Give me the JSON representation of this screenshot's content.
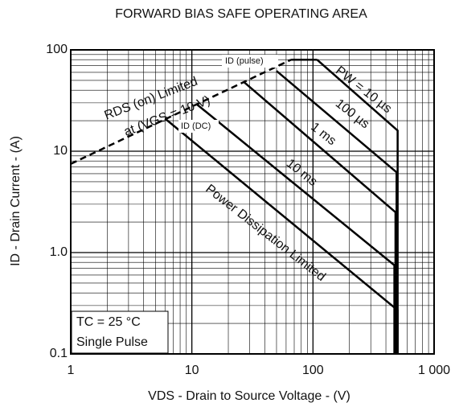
{
  "chart_data": {
    "type": "line",
    "title": "FORWARD BIAS SAFE OPERATING AREA",
    "x_label": "VDS - Drain to Source Voltage - (V)",
    "y_label": "ID - Drain Current - (A)",
    "log_x": true,
    "log_y": true,
    "grid": true,
    "xlim": [
      1,
      1000
    ],
    "ylim": [
      0.1,
      100
    ],
    "xticks": [
      1,
      10,
      100,
      {
        "value": 1000,
        "label": "1 000"
      }
    ],
    "yticks": [
      0.1,
      {
        "value": 1,
        "label": "1.0"
      },
      10,
      100
    ],
    "series": [
      {
        "name": "PW = 10 µs",
        "color": "#000000",
        "x": [
          108,
          500,
          500
        ],
        "values": [
          80,
          16,
          0.1
        ]
      },
      {
        "name": "100 µs",
        "color": "#000000",
        "x": [
          50,
          490,
          490
        ],
        "values": [
          62,
          6.2,
          0.1
        ]
      },
      {
        "name": "1 ms",
        "color": "#000000",
        "x": [
          27,
          480,
          480
        ],
        "values": [
          48,
          2.5,
          0.1
        ]
      },
      {
        "name": "10 ms",
        "color": "#000000",
        "x": [
          11,
          470,
          470
        ],
        "values": [
          29,
          0.75,
          0.1
        ]
      },
      {
        "name": "Power Dissipation Limited",
        "color": "#000000",
        "x": [
          6,
          500,
          500
        ],
        "values": [
          21,
          0.27,
          0.1
        ]
      },
      {
        "name": "RDS (on) Limited",
        "color": "#000000",
        "dashed": true,
        "x": [
          1,
          66
        ],
        "values": [
          7.5,
          80
        ]
      },
      {
        "name": "ID (pulse)",
        "color": "#000000",
        "x": [
          66,
          108
        ],
        "values": [
          80,
          80
        ]
      }
    ],
    "annotations": [
      "at (VGS = 10 V)",
      "ID (DC)",
      "TC = 25 °C",
      "Single Pulse"
    ]
  }
}
